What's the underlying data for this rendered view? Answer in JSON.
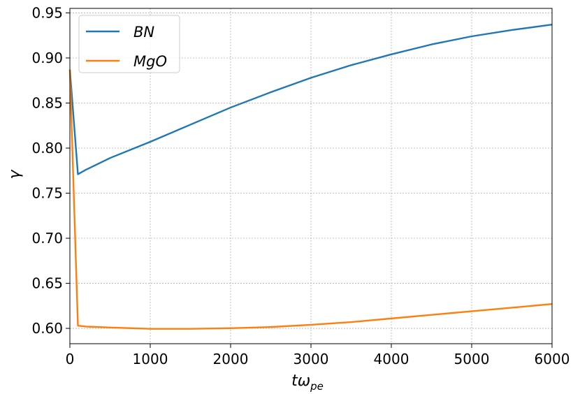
{
  "chart_data": {
    "type": "line",
    "xlabel": "tω",
    "xlabel_sub": "pe",
    "ylabel": "γ",
    "xlim": [
      0,
      6000
    ],
    "ylim": [
      0.583,
      0.955
    ],
    "xticks": [
      0,
      1000,
      2000,
      3000,
      4000,
      5000,
      6000
    ],
    "yticks": [
      0.6,
      0.65,
      0.7,
      0.75,
      0.8,
      0.85,
      0.9,
      0.95
    ],
    "grid": true,
    "legend_position": "top-left",
    "series": [
      {
        "name": "BN",
        "color": "#1f77b4",
        "x": [
          0,
          100,
          200,
          500,
          1000,
          1500,
          2000,
          2500,
          3000,
          3500,
          4000,
          4500,
          5000,
          5500,
          6000
        ],
        "y": [
          0.887,
          0.771,
          0.776,
          0.789,
          0.807,
          0.826,
          0.845,
          0.862,
          0.878,
          0.892,
          0.904,
          0.915,
          0.924,
          0.931,
          0.937
        ]
      },
      {
        "name": "MgO",
        "color": "#ff7f0e",
        "x": [
          0,
          100,
          200,
          500,
          1000,
          1500,
          2000,
          2500,
          3000,
          3500,
          4000,
          4500,
          5000,
          5500,
          6000
        ],
        "y": [
          0.887,
          0.603,
          0.602,
          0.601,
          0.5995,
          0.5995,
          0.6002,
          0.6015,
          0.604,
          0.607,
          0.611,
          0.615,
          0.619,
          0.623,
          0.627
        ]
      }
    ]
  }
}
